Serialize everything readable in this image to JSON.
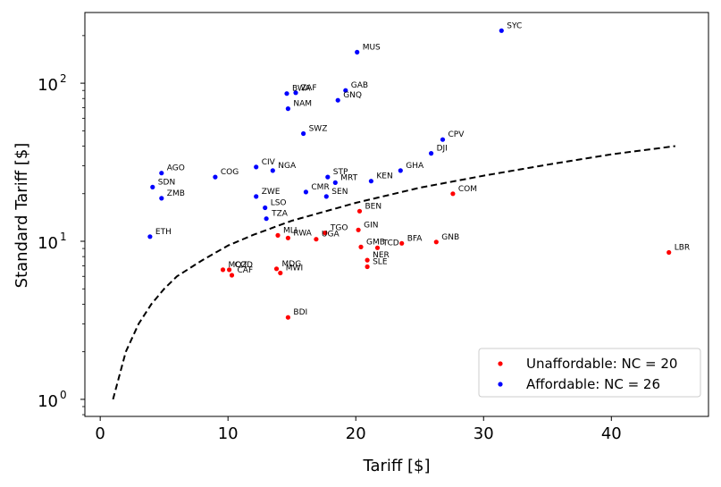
{
  "chart_data": {
    "type": "scatter",
    "title": "",
    "xlabel": "Tariff [$]",
    "ylabel": "Standard Tariff [$]",
    "xlim": [
      -1.2,
      47.6
    ],
    "ylim": [
      0.78,
      280
    ],
    "yscale": "log",
    "x_ticks": [
      0,
      10,
      20,
      30,
      40
    ],
    "x_tick_labels": [
      "0",
      "10",
      "20",
      "30",
      "40"
    ],
    "y_ticks": [
      1,
      10,
      100
    ],
    "y_tick_labels": [
      "10",
      "10",
      "10"
    ],
    "y_tick_exponents": [
      "0",
      "1",
      "2"
    ],
    "legend_position": "lower-right",
    "series": [
      {
        "name": "Unaffordable: NC = 20",
        "color": "#ff0000",
        "points": [
          {
            "label": "LBR",
            "x": 44.5,
            "y": 8.5
          },
          {
            "label": "COM",
            "x": 27.6,
            "y": 20.0
          },
          {
            "label": "GNB",
            "x": 26.3,
            "y": 9.9
          },
          {
            "label": "BFA",
            "x": 23.6,
            "y": 9.7
          },
          {
            "label": "TCD",
            "x": 21.7,
            "y": 9.1
          },
          {
            "label": "BEN",
            "x": 20.3,
            "y": 15.5
          },
          {
            "label": "GIN",
            "x": 20.2,
            "y": 11.8
          },
          {
            "label": "GMB",
            "x": 20.4,
            "y": 9.2
          },
          {
            "label": "NER",
            "x": 20.9,
            "y": 7.6
          },
          {
            "label": "SLE",
            "x": 20.9,
            "y": 6.9
          },
          {
            "label": "TGO",
            "x": 17.6,
            "y": 11.3
          },
          {
            "label": "UGA",
            "x": 16.9,
            "y": 10.3
          },
          {
            "label": "MLI",
            "x": 13.9,
            "y": 10.9
          },
          {
            "label": "RWA",
            "x": 14.7,
            "y": 10.5
          },
          {
            "label": "MDG",
            "x": 13.8,
            "y": 6.7
          },
          {
            "label": "MWI",
            "x": 14.1,
            "y": 6.3
          },
          {
            "label": "MOZ",
            "x": 9.6,
            "y": 6.6
          },
          {
            "label": "COD",
            "x": 10.1,
            "y": 6.6
          },
          {
            "label": "CAF",
            "x": 10.3,
            "y": 6.1
          },
          {
            "label": "BDI",
            "x": 14.7,
            "y": 3.3
          }
        ]
      },
      {
        "name": "Affordable: NC = 26",
        "color": "#0000ff",
        "points": [
          {
            "label": "SYC",
            "x": 31.4,
            "y": 215
          },
          {
            "label": "MUS",
            "x": 20.1,
            "y": 157
          },
          {
            "label": "GAB",
            "x": 19.2,
            "y": 90
          },
          {
            "label": "GNQ",
            "x": 18.6,
            "y": 78
          },
          {
            "label": "BWA",
            "x": 14.6,
            "y": 86
          },
          {
            "label": "ZAF",
            "x": 15.3,
            "y": 87
          },
          {
            "label": "NAM",
            "x": 14.7,
            "y": 69
          },
          {
            "label": "SWZ",
            "x": 15.9,
            "y": 48
          },
          {
            "label": "CPV",
            "x": 26.8,
            "y": 44
          },
          {
            "label": "DJI",
            "x": 25.9,
            "y": 36
          },
          {
            "label": "GHA",
            "x": 23.5,
            "y": 28
          },
          {
            "label": "KEN",
            "x": 21.2,
            "y": 24
          },
          {
            "label": "STP",
            "x": 17.8,
            "y": 25.5
          },
          {
            "label": "MRT",
            "x": 18.4,
            "y": 23.5
          },
          {
            "label": "CMR",
            "x": 16.1,
            "y": 20.5
          },
          {
            "label": "SEN",
            "x": 17.7,
            "y": 19.2
          },
          {
            "label": "NGA",
            "x": 13.5,
            "y": 28
          },
          {
            "label": "CIV",
            "x": 12.2,
            "y": 29.5
          },
          {
            "label": "COG",
            "x": 9.0,
            "y": 25.5
          },
          {
            "label": "ZWE",
            "x": 12.2,
            "y": 19.2
          },
          {
            "label": "LSO",
            "x": 12.9,
            "y": 16.3
          },
          {
            "label": "TZA",
            "x": 13.0,
            "y": 13.9
          },
          {
            "label": "AGO",
            "x": 4.8,
            "y": 27
          },
          {
            "label": "SDN",
            "x": 4.1,
            "y": 22
          },
          {
            "label": "ZMB",
            "x": 4.8,
            "y": 18.7
          },
          {
            "label": "ETH",
            "x": 3.9,
            "y": 10.7
          }
        ]
      }
    ],
    "fit_curve": {
      "style": "dashed",
      "color": "#000000",
      "x": [
        1,
        2,
        3,
        4,
        5,
        6,
        8,
        10,
        12,
        15,
        20,
        25,
        30,
        35,
        40,
        45
      ],
      "y": [
        1.0,
        2.0,
        3.0,
        4.0,
        5.0,
        6.0,
        7.6,
        9.4,
        11.0,
        13.5,
        17.5,
        21.8,
        26.0,
        30.5,
        35.5,
        40.0
      ]
    }
  }
}
